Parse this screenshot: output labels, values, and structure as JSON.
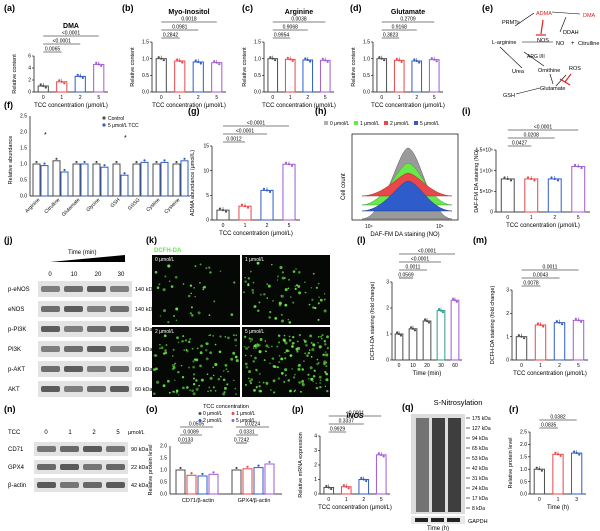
{
  "panel_letters": [
    "(a)",
    "(b)",
    "(c)",
    "(d)",
    "(e)",
    "(f)",
    "(g)",
    "(h)",
    "(i)",
    "(j)",
    "(k)",
    "(l)",
    "(m)",
    "(n)",
    "(o)",
    "(p)",
    "(q)",
    "(r)"
  ],
  "colors": {
    "c0": "#4d4d4d",
    "c1": "#e8474b",
    "c2": "#2f5ccb",
    "c5": "#a05ad4",
    "lime": "#69e84a",
    "dark": "#000000",
    "western": "#3a3a3a",
    "red": "#e02020"
  },
  "pathway": {
    "nodes": [
      "PRMTs",
      "ADMA",
      "DMA",
      "DDAH",
      "NOS",
      "L-arginine",
      "NO",
      "Citrulline",
      "ARG I/II",
      "Urea",
      "Ornithine",
      "ROS",
      "Glutamate",
      "GSH"
    ],
    "plus": "+"
  },
  "k_labels": {
    "title": "DCFH-DA",
    "tiles": [
      "0 μmol/L",
      "1 μmol/L",
      "2 μmol/L",
      "5 μmol/L"
    ]
  },
  "h_legend": [
    "0 μmol/L",
    "1 μmol/L",
    "2 μmol/L",
    "5 μmol/L"
  ],
  "h_axis": {
    "ylabel": "Cell count",
    "xlabel": "DAF-FM DA staining (NO)",
    "ticks": [
      "10⁴",
      "10⁵"
    ]
  },
  "j_blot": {
    "header": "Time (min)",
    "times": [
      "0",
      "10",
      "20",
      "30"
    ],
    "rows": [
      {
        "name": "p-eNOS",
        "kda": "140 kDa"
      },
      {
        "name": "eNOS",
        "kda": "140 kDa"
      },
      {
        "name": "p-PI3K",
        "kda": "54 kDa"
      },
      {
        "name": "PI3K",
        "kda": "85 kDa"
      },
      {
        "name": "p-AKT",
        "kda": "60 kDa"
      },
      {
        "name": "AKT",
        "kda": "60 kDa"
      }
    ]
  },
  "n_blot": {
    "tcc_label": "TCC",
    "doses": [
      "0",
      "1",
      "2",
      "5"
    ],
    "unit": "μmol/L",
    "rows": [
      {
        "name": "CD71",
        "kda": "90 kDa"
      },
      {
        "name": "GPX4",
        "kda": "22 kDa"
      },
      {
        "name": "β-actin",
        "kda": "42 kDa"
      }
    ]
  },
  "q_blot": {
    "title": "S-Nitrosylation",
    "markers": [
      "175 kDa",
      "127 kDa",
      "94 kDa",
      "65 kDa",
      "53 kDa",
      "42 kDa",
      "31 kDa",
      "24 kDa",
      "17 kDa",
      "8 kDa"
    ],
    "gapdh": "GAPDH",
    "times": [
      "0",
      "1",
      "3"
    ],
    "xlabel": "Time (h)"
  },
  "chart_data": [
    {
      "id": "a",
      "type": "bar",
      "title": "DMA",
      "ylabel": "Relative content",
      "xlabel": "TCC concentration (μmol/L)",
      "categories": [
        "0",
        "1",
        "2",
        "5"
      ],
      "values": [
        1.0,
        1.7,
        2.6,
        4.6
      ],
      "ylim": [
        0,
        6
      ],
      "yticks": [
        "0",
        "2",
        "4",
        "6"
      ],
      "pvals": [
        "0.0065",
        "<0.0001",
        "<0.0001"
      ]
    },
    {
      "id": "b",
      "type": "bar",
      "title": "Myo-Inositol",
      "ylabel": "Relative content",
      "xlabel": "TCC concentration (μmol/L)",
      "categories": [
        "0",
        "1",
        "2",
        "5"
      ],
      "values": [
        1.0,
        0.93,
        0.9,
        0.88
      ],
      "ylim": [
        0,
        1.5
      ],
      "yticks": [
        "0.0",
        "0.5",
        "1.0",
        "1.5"
      ],
      "pvals": [
        "0.2842",
        "0.0981",
        "0.0018"
      ]
    },
    {
      "id": "c",
      "type": "bar",
      "title": "Arginine",
      "ylabel": "Relative content",
      "xlabel": "TCC concentration (μmol/L)",
      "categories": [
        "0",
        "1",
        "2",
        "5"
      ],
      "values": [
        1.0,
        0.98,
        0.96,
        0.95
      ],
      "ylim": [
        0,
        1.5
      ],
      "yticks": [
        "0.0",
        "0.5",
        "1.0",
        "1.5"
      ],
      "pvals": [
        "0.9954",
        "0.9068",
        "0.0038"
      ]
    },
    {
      "id": "d",
      "type": "bar",
      "title": "Glutamate",
      "ylabel": "Relative content",
      "xlabel": "TCC concentration (μmol/L)",
      "categories": [
        "0",
        "1",
        "2",
        "5"
      ],
      "values": [
        1.0,
        0.95,
        0.93,
        0.97
      ],
      "ylim": [
        0,
        1.5
      ],
      "yticks": [
        "0.0",
        "0.5",
        "1.0",
        "1.5"
      ],
      "pvals": [
        "0.3823",
        "0.9168",
        "0.2709"
      ]
    },
    {
      "id": "f",
      "type": "bar",
      "ylabel": "Relative abundance",
      "categories": [
        "Arginine",
        "Citrulline",
        "Glutamate",
        "Glycine",
        "GSH",
        "GSSG",
        "Cystine",
        "Cysteine"
      ],
      "series": [
        {
          "name": "Control",
          "values": [
            1.0,
            1.1,
            1.0,
            1.0,
            1.0,
            1.0,
            1.0,
            1.0
          ]
        },
        {
          "name": "5 μmol/L TCC",
          "values": [
            0.95,
            0.75,
            1.0,
            0.9,
            0.65,
            1.05,
            1.05,
            1.1
          ]
        }
      ],
      "ylim": [
        0,
        2.5
      ],
      "yticks": [
        "0.0",
        "0.5",
        "1.0",
        "1.5",
        "2.0",
        "2.5"
      ],
      "marks": [
        "*",
        "*"
      ]
    },
    {
      "id": "g",
      "type": "bar",
      "ylabel": "ADMA abundance (μmol/L)",
      "xlabel": "TCC concentration (μmol/L)",
      "categories": [
        "0",
        "1",
        "2",
        "5"
      ],
      "values": [
        2.0,
        2.8,
        6.0,
        11.3
      ],
      "ylim": [
        0,
        15
      ],
      "yticks": [
        "0",
        "5",
        "10",
        "15"
      ],
      "pvals": [
        "0.0012",
        "<0.0001",
        "<0.0001"
      ]
    },
    {
      "id": "i",
      "type": "bar",
      "ylabel": "DAF-FM DA staining (NO)",
      "xlabel": "TCC concentration (μmol/L)",
      "categories": [
        "0",
        "1",
        "2",
        "5"
      ],
      "values": [
        800000,
        800000,
        800000,
        1100000
      ],
      "ylim": [
        0,
        1500000
      ],
      "yticks": [
        "0",
        "5×10⁵",
        "1×10⁶",
        "1.5×10⁶"
      ],
      "pvals": [
        "0.0427",
        "0.0208",
        "<0.0001"
      ]
    },
    {
      "id": "l",
      "type": "bar",
      "ylabel": "DCFH-DA staining (fold change)",
      "xlabel": "Time (min)",
      "categories": [
        "0",
        "10",
        "20",
        "30",
        "60"
      ],
      "values": [
        1.0,
        1.2,
        1.5,
        1.9,
        2.3
      ],
      "ylim": [
        0,
        3
      ],
      "yticks": [
        "0",
        "1",
        "2",
        "3"
      ],
      "pvals": [
        "0.0569",
        "0.0011",
        "<0.0001",
        "<0.0001"
      ]
    },
    {
      "id": "m",
      "type": "bar",
      "ylabel": "DCFH-DA staining (fold change)",
      "xlabel": "TCC concentration (μmol/L)",
      "categories": [
        "0",
        "1",
        "2",
        "5"
      ],
      "values": [
        1.0,
        1.5,
        1.6,
        1.7
      ],
      "ylim": [
        0,
        3
      ],
      "yticks": [
        "0",
        "1",
        "2",
        "3"
      ],
      "pvals": [
        "0.0078",
        "0.0043",
        "0.0011"
      ]
    },
    {
      "id": "o",
      "type": "bar",
      "ylabel": "Relative protein level",
      "groups": [
        "CD71/β-actin",
        "GPX4/β-actin"
      ],
      "legend_title": "TCC concentration",
      "series": [
        {
          "name": "0 μmol/L",
          "values": [
            1.0,
            1.0
          ]
        },
        {
          "name": "1 μmol/L",
          "values": [
            0.78,
            1.05
          ]
        },
        {
          "name": "2 μmol/L",
          "values": [
            0.75,
            1.1
          ]
        },
        {
          "name": "5 μmol/L",
          "values": [
            0.82,
            1.25
          ]
        }
      ],
      "ylim": [
        0,
        2
      ],
      "yticks": [
        "0.0",
        "0.5",
        "1.0",
        "1.5",
        "2.0"
      ],
      "pvals": [
        "0.0133",
        "0.0089",
        "0.0505",
        "0.7242",
        "0.0331",
        "0.0224"
      ]
    },
    {
      "id": "p",
      "type": "bar",
      "title": "iNOS",
      "ylabel": "Relative mRNA expression",
      "xlabel": "TCC concentration (μmol/L)",
      "categories": [
        "0",
        "1",
        "2",
        "5"
      ],
      "values": [
        0.45,
        0.5,
        1.0,
        2.7
      ],
      "ylim": [
        0,
        4
      ],
      "yticks": [
        "0",
        "1",
        "2",
        "3",
        "4"
      ],
      "pvals": [
        "0.9929",
        "0.3337",
        "<0.0001"
      ]
    },
    {
      "id": "r",
      "type": "bar",
      "ylabel": "Relative protein level",
      "xlabel": "Time (h)",
      "categories": [
        "0",
        "1",
        "3"
      ],
      "values": [
        1.0,
        1.6,
        1.65
      ],
      "ylim": [
        0,
        2.5
      ],
      "yticks": [
        "0.0",
        "0.5",
        "1.0",
        "1.5",
        "2.0",
        "2.5"
      ],
      "pvals": [
        "0.0835",
        "0.0382"
      ]
    }
  ]
}
